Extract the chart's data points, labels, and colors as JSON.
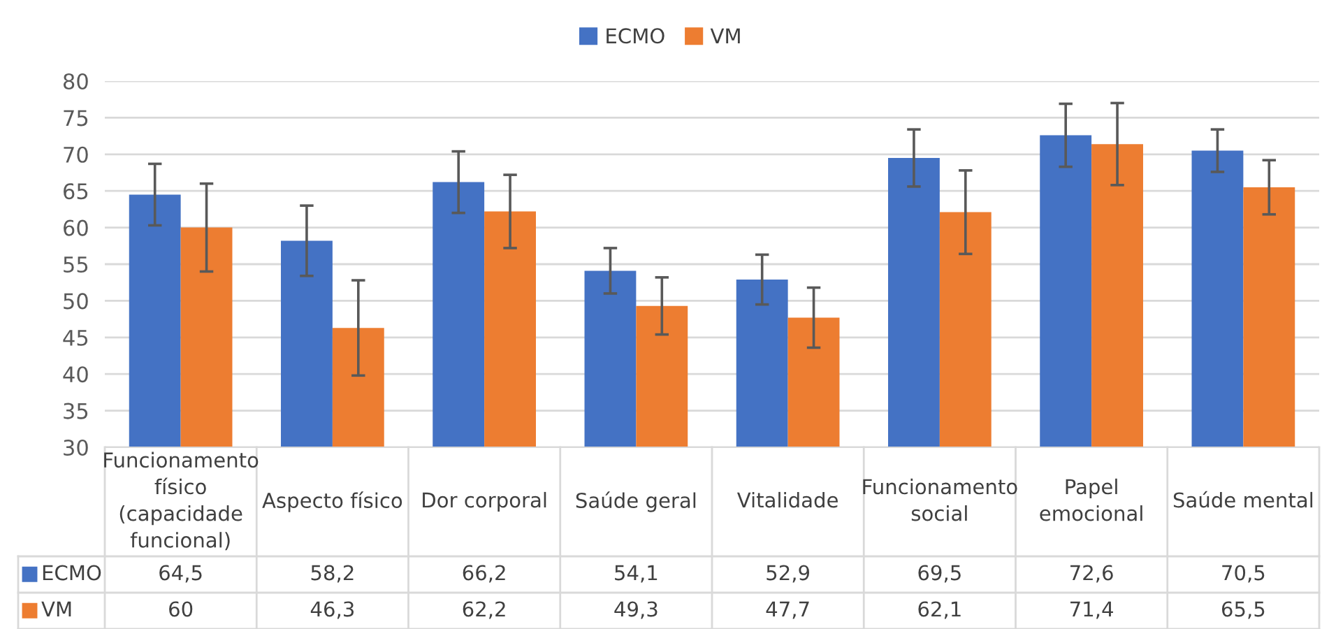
{
  "chart_data": {
    "type": "bar",
    "categories": [
      "Funcionamento\nfísico\n(capacidade\nfuncional)",
      "Aspecto físico",
      "Dor corporal",
      "Saúde geral",
      "Vitalidade",
      "Funcionamento\nsocial",
      "Papel\nemocional",
      "Saúde mental"
    ],
    "series": [
      {
        "name": "ECMO",
        "color": "#4472c4",
        "values": [
          64.5,
          58.2,
          66.2,
          54.1,
          52.9,
          69.5,
          72.6,
          70.5
        ],
        "errors": [
          4.2,
          4.8,
          4.2,
          3.1,
          3.4,
          3.9,
          4.3,
          2.9
        ],
        "value_labels": [
          "64,5",
          "58,2",
          "66,2",
          "54,1",
          "52,9",
          "69,5",
          "72,6",
          "70,5"
        ]
      },
      {
        "name": "VM",
        "color": "#ed7d31",
        "values": [
          60,
          46.3,
          62.2,
          49.3,
          47.7,
          62.1,
          71.4,
          65.5
        ],
        "errors": [
          6,
          6.5,
          5,
          3.9,
          4.1,
          5.7,
          5.6,
          3.7
        ],
        "value_labels": [
          "60",
          "46,3",
          "62,2",
          "49,3",
          "47,7",
          "62,1",
          "71,4",
          "65,5"
        ]
      }
    ],
    "ylim": [
      30,
      80
    ],
    "yticks": [
      30,
      35,
      40,
      45,
      50,
      55,
      60,
      65,
      70,
      75,
      80
    ],
    "grid": "y",
    "legend": "top"
  }
}
